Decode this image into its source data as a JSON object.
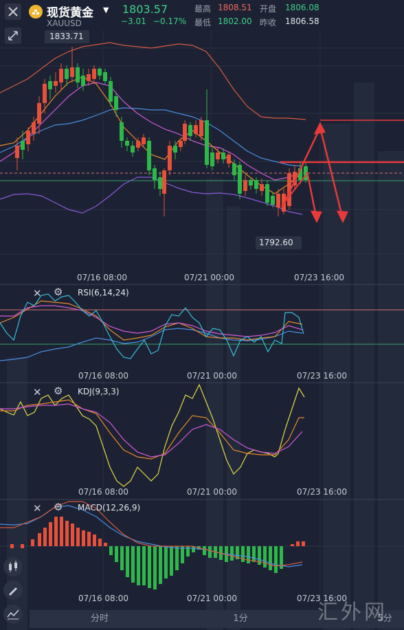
{
  "header": {
    "name": "现货黄金",
    "symbol": "XAUUSD",
    "price": "1803.57",
    "change": "−3.01",
    "change_pct": "−0.17%",
    "high_label": "最高",
    "high_value": "1808.51",
    "open_label": "开盘",
    "open_value": "1806.08",
    "low_label": "最低",
    "low_value": "1802.00",
    "prev_close_label": "昨收",
    "prev_close_value": "1806.58"
  },
  "main_chart": {
    "high_marker": "1833.71",
    "low_marker": "1792.60",
    "time_labels": [
      "07/16 08:00",
      "07/21 00:00",
      "07/23 16:00"
    ]
  },
  "rsi": {
    "title": "RSI(6,14,24)",
    "time_labels": [
      "07/16 08:00",
      "07/21 00:00",
      "07/23 16:00"
    ]
  },
  "kdj": {
    "title": "KDJ(9,3,3)",
    "time_labels": [
      "07/16 08:00",
      "07/21 00:00",
      "07/23 16:00"
    ]
  },
  "macd": {
    "title": "MACD(12,26,9)",
    "time_labels": [
      "07/16 08:00",
      "07/21 00:00",
      "07/23 16:00"
    ]
  },
  "tabs": {
    "t1": "分时",
    "t2": "1分",
    "t3": "5分"
  },
  "watermark": "汇外网",
  "colors": {
    "up": "#e8503a",
    "down": "#2fb84a",
    "bg": "#1c2233",
    "accent_green": "#3fd08a",
    "accent_red": "#f06a5a"
  },
  "icons": [
    "close-icon",
    "gold-coin-icon",
    "dropdown-icon",
    "collapse-icon",
    "settings-icon",
    "candlestick-icon",
    "pen-icon",
    "line-chart-icon"
  ]
}
